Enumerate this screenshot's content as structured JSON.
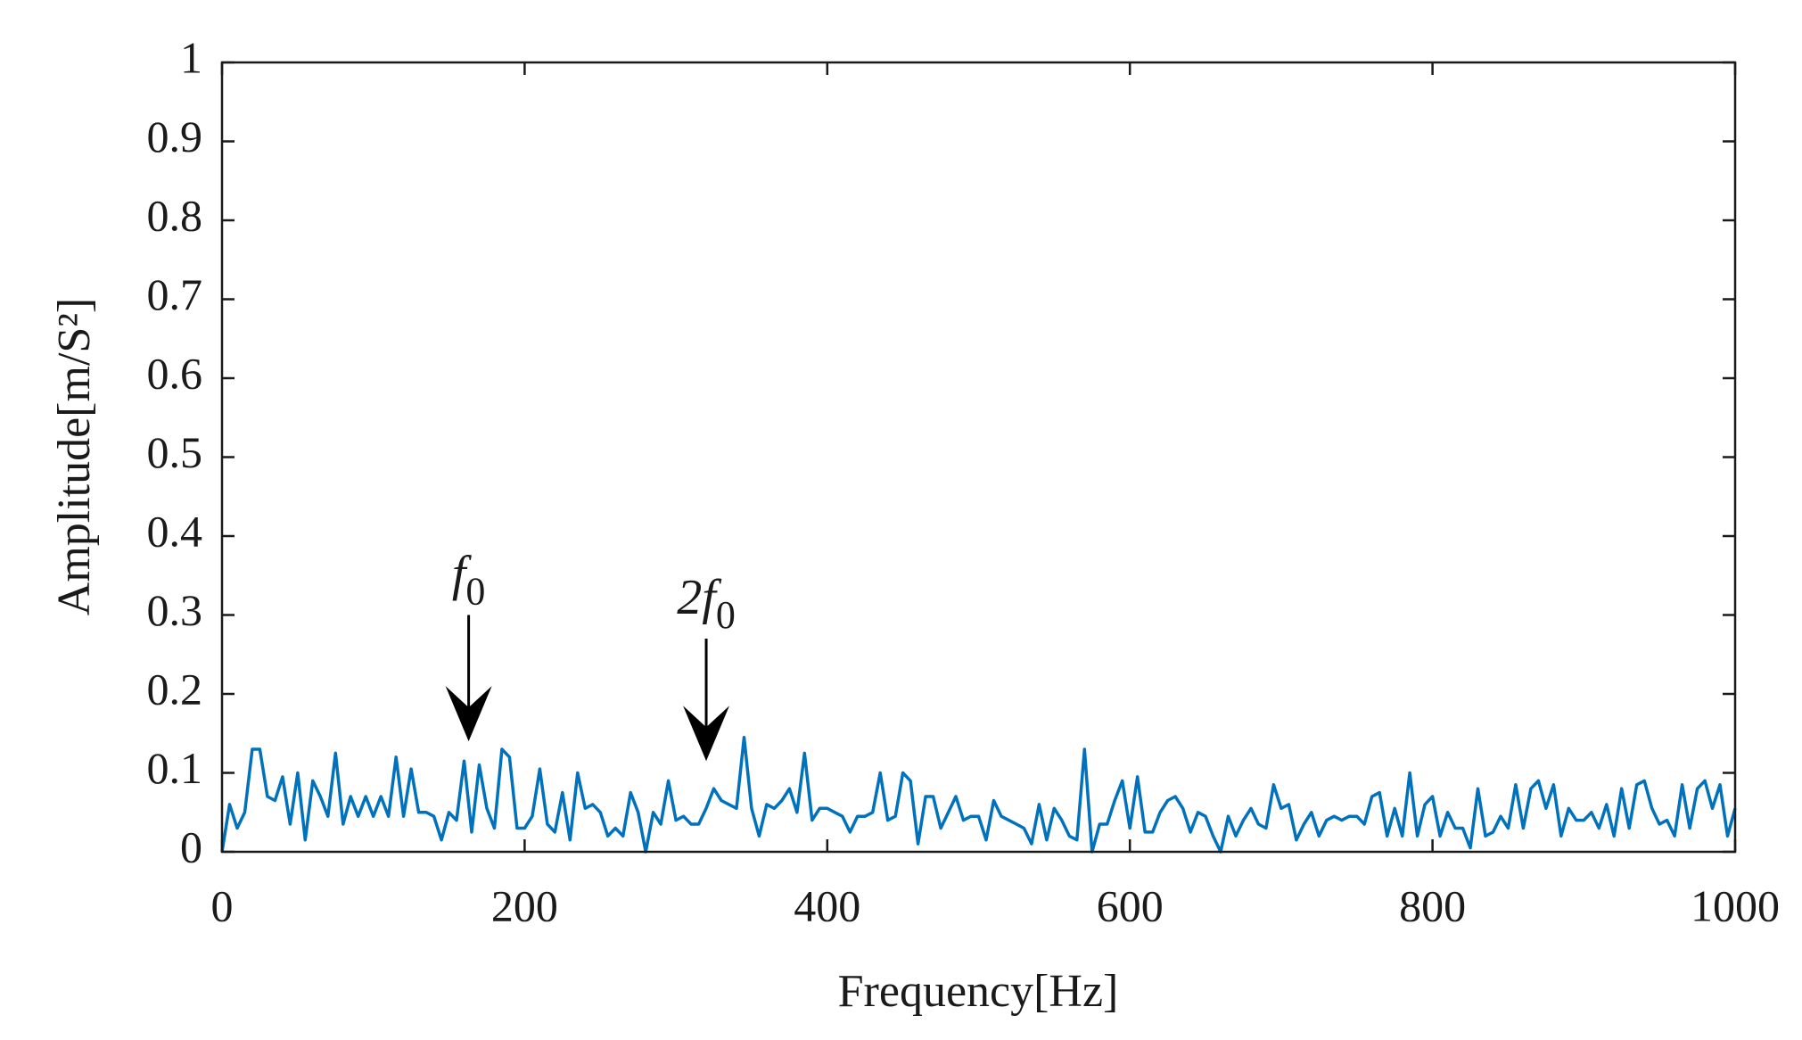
{
  "chart_data": {
    "type": "line",
    "xlabel": "Frequency[Hz]",
    "ylabel": "Amplitude[m/S²]",
    "xlim": [
      0,
      1000
    ],
    "ylim": [
      0,
      1
    ],
    "xticks": [
      0,
      200,
      400,
      600,
      800,
      1000
    ],
    "yticks": [
      0,
      0.1,
      0.2,
      0.3,
      0.4,
      0.5,
      0.6,
      0.7,
      0.8,
      0.9,
      1
    ],
    "grid": false,
    "annotations": [
      {
        "text": "f",
        "sub": "0",
        "x": 163,
        "y_from": 0.3,
        "y_to": 0.14
      },
      {
        "text": "2f",
        "sub": "0",
        "x": 320,
        "y_from": 0.27,
        "y_to": 0.115
      }
    ],
    "x": [
      0,
      5,
      10,
      15,
      20,
      25,
      30,
      35,
      40,
      45,
      50,
      55,
      60,
      65,
      70,
      75,
      80,
      85,
      90,
      95,
      100,
      105,
      110,
      115,
      120,
      125,
      130,
      135,
      140,
      145,
      150,
      155,
      160,
      165,
      170,
      175,
      180,
      185,
      190,
      195,
      200,
      205,
      210,
      215,
      220,
      225,
      230,
      235,
      240,
      245,
      250,
      255,
      260,
      265,
      270,
      275,
      280,
      285,
      290,
      295,
      300,
      305,
      310,
      315,
      320,
      325,
      330,
      335,
      340,
      345,
      350,
      355,
      360,
      365,
      370,
      375,
      380,
      385,
      390,
      395,
      400,
      405,
      410,
      415,
      420,
      425,
      430,
      435,
      440,
      445,
      450,
      455,
      460,
      465,
      470,
      475,
      480,
      485,
      490,
      495,
      500,
      505,
      510,
      515,
      520,
      525,
      530,
      535,
      540,
      545,
      550,
      555,
      560,
      565,
      570,
      575,
      580,
      585,
      590,
      595,
      600,
      605,
      610,
      615,
      620,
      625,
      630,
      635,
      640,
      645,
      650,
      655,
      660,
      665,
      670,
      675,
      680,
      685,
      690,
      695,
      700,
      705,
      710,
      715,
      720,
      725,
      730,
      735,
      740,
      745,
      750,
      755,
      760,
      765,
      770,
      775,
      780,
      785,
      790,
      795,
      800,
      805,
      810,
      815,
      820,
      825,
      830,
      835,
      840,
      845,
      850,
      855,
      860,
      865,
      870,
      875,
      880,
      885,
      890,
      895,
      900,
      905,
      910,
      915,
      920,
      925,
      930,
      935,
      940,
      945,
      950,
      955,
      960,
      965,
      970,
      975,
      980,
      985,
      990,
      995,
      1000
    ],
    "series": [
      {
        "name": "amplitude",
        "color": "#0072bd",
        "values": [
          0,
          0.06,
          0.03,
          0.05,
          0.13,
          0.13,
          0.07,
          0.065,
          0.095,
          0.035,
          0.1,
          0.015,
          0.09,
          0.07,
          0.045,
          0.125,
          0.035,
          0.07,
          0.045,
          0.07,
          0.045,
          0.07,
          0.045,
          0.12,
          0.045,
          0.105,
          0.05,
          0.05,
          0.045,
          0.015,
          0.05,
          0.04,
          0.115,
          0.025,
          0.11,
          0.055,
          0.03,
          0.13,
          0.12,
          0.03,
          0.03,
          0.045,
          0.105,
          0.035,
          0.025,
          0.075,
          0.015,
          0.1,
          0.055,
          0.06,
          0.05,
          0.02,
          0.03,
          0.02,
          0.075,
          0.05,
          0.0,
          0.05,
          0.035,
          0.09,
          0.04,
          0.045,
          0.035,
          0.035,
          0.055,
          0.08,
          0.065,
          0.06,
          0.055,
          0.145,
          0.055,
          0.02,
          0.06,
          0.055,
          0.065,
          0.08,
          0.05,
          0.125,
          0.04,
          0.055,
          0.055,
          0.05,
          0.045,
          0.025,
          0.045,
          0.045,
          0.05,
          0.1,
          0.04,
          0.045,
          0.1,
          0.09,
          0.01,
          0.07,
          0.07,
          0.03,
          0.05,
          0.07,
          0.04,
          0.045,
          0.045,
          0.015,
          0.065,
          0.045,
          0.04,
          0.035,
          0.03,
          0.01,
          0.06,
          0.015,
          0.055,
          0.04,
          0.02,
          0.015,
          0.13,
          0.0,
          0.035,
          0.035,
          0.065,
          0.09,
          0.03,
          0.095,
          0.025,
          0.025,
          0.05,
          0.065,
          0.07,
          0.055,
          0.025,
          0.05,
          0.045,
          0.02,
          0.0,
          0.045,
          0.02,
          0.04,
          0.055,
          0.035,
          0.03,
          0.085,
          0.055,
          0.06,
          0.015,
          0.035,
          0.05,
          0.02,
          0.04,
          0.045,
          0.04,
          0.045,
          0.045,
          0.035,
          0.07,
          0.075,
          0.02,
          0.055,
          0.02,
          0.1,
          0.02,
          0.06,
          0.07,
          0.02,
          0.05,
          0.03,
          0.03,
          0.005,
          0.08,
          0.02,
          0.025,
          0.045,
          0.03,
          0.085,
          0.03,
          0.08,
          0.09,
          0.055,
          0.085,
          0.02,
          0.055,
          0.04,
          0.04,
          0.05,
          0.03,
          0.06,
          0.02,
          0.08,
          0.03,
          0.085,
          0.09,
          0.055,
          0.035,
          0.04,
          0.02,
          0.085,
          0.03,
          0.08,
          0.09,
          0.055,
          0.085,
          0.02,
          0.055
        ]
      }
    ]
  }
}
